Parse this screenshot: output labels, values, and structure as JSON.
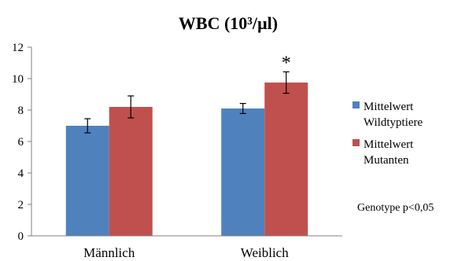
{
  "chart_data": {
    "type": "bar",
    "title": "WBC (10³/µl)",
    "categories": [
      "Männlich",
      "Weiblich"
    ],
    "series": [
      {
        "name": "Mittelwert Wildtyptiere",
        "legend_lines": [
          "Mittelwert",
          "Wildtyptiere"
        ],
        "color": "#4f81bd",
        "values": [
          7.0,
          8.1
        ],
        "errors": [
          0.45,
          0.32
        ]
      },
      {
        "name": "Mittelwert Mutanten",
        "legend_lines": [
          "Mittelwert",
          "Mutanten"
        ],
        "color": "#c0504d",
        "values": [
          8.2,
          9.75
        ],
        "errors": [
          0.7,
          0.68
        ]
      }
    ],
    "ylim": [
      0,
      12
    ],
    "yticks": [
      0,
      2,
      4,
      6,
      8,
      10,
      12
    ],
    "grid": false,
    "legend_position": "right",
    "annotations": [
      {
        "text": "*",
        "category_index": 1,
        "series_index": 1
      }
    ],
    "note": "Genotype p<0,05"
  }
}
